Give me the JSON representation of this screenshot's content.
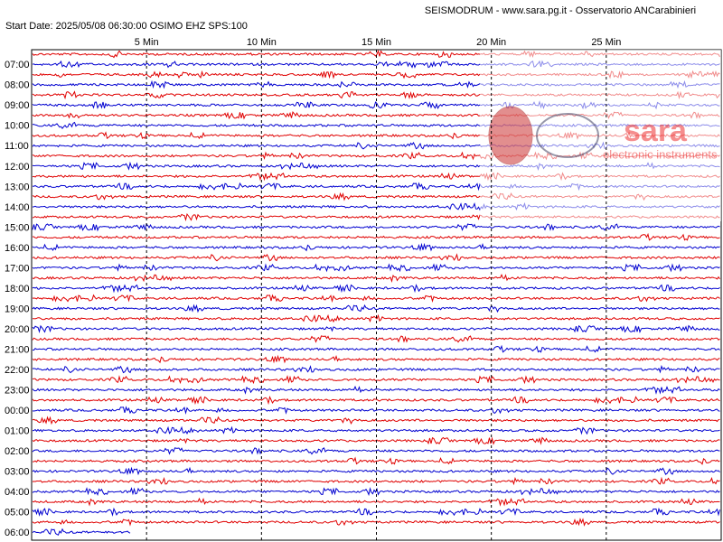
{
  "header": {
    "title": "SEISMODRUM - www.sara.pg.it - Osservatorio ANCarabinieri",
    "info": "Start Date: 2025/05/08 06:30:00 OSIMO   EHZ  SPS:100"
  },
  "x_axis": {
    "labels": [
      "5 Min",
      "10 Min",
      "15 Min",
      "20 Min",
      "25 Min"
    ]
  },
  "time_labels": [
    "07:00",
    "08:00",
    "09:00",
    "10:00",
    "11:00",
    "12:00",
    "13:00",
    "14:00",
    "15:00",
    "16:00",
    "17:00",
    "18:00",
    "19:00",
    "20:00",
    "21:00",
    "22:00",
    "23:00",
    "00:00",
    "01:00",
    "02:00",
    "03:00",
    "04:00",
    "05:00",
    "06:00"
  ],
  "logo": {
    "name": "sara",
    "subtitle": "electronic instruments"
  }
}
